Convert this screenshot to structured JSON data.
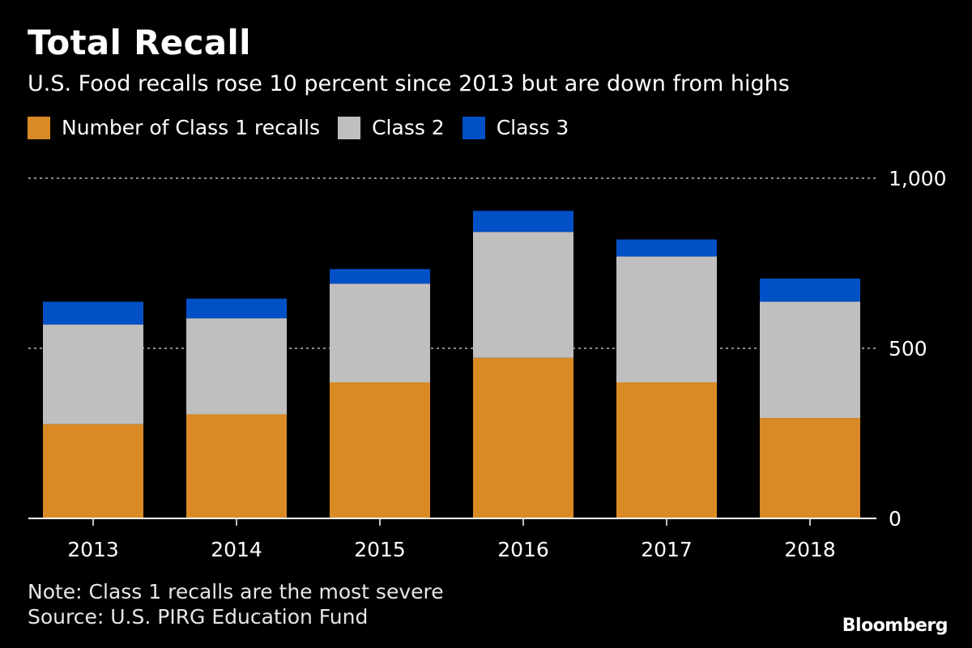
{
  "chart_data": {
    "type": "bar",
    "stacked": true,
    "title": "Total Recall",
    "subtitle": "U.S. Food recalls rose 10 percent since 2013 but are down from highs",
    "categories": [
      "2013",
      "2014",
      "2015",
      "2016",
      "2017",
      "2018"
    ],
    "series": [
      {
        "name": "Number of Class 1 recalls",
        "color": "#d98a24",
        "values": [
          277,
          306,
          400,
          472,
          400,
          295
        ]
      },
      {
        "name": "Class 2",
        "color": "#bfbfbf",
        "values": [
          293,
          282,
          290,
          370,
          370,
          342
        ]
      },
      {
        "name": "Class 3",
        "color": "#0250c5",
        "values": [
          67,
          58,
          43,
          62,
          50,
          68
        ]
      }
    ],
    "ylim": [
      0,
      1000
    ],
    "yticks": [
      0,
      500,
      1000
    ],
    "ytick_labels": [
      "0",
      "500",
      "1,000"
    ],
    "grid": true,
    "legend": "top-left",
    "xlabel": "",
    "ylabel": ""
  },
  "footer": {
    "note": "Note: Class 1 recalls are the most severe",
    "source": "Source: U.S. PIRG Education Fund",
    "brand": "Bloomberg"
  },
  "colors": {
    "background": "#000000",
    "gridline": "#8a8a8a",
    "axis": "#ffffff",
    "text": "#ffffff"
  }
}
